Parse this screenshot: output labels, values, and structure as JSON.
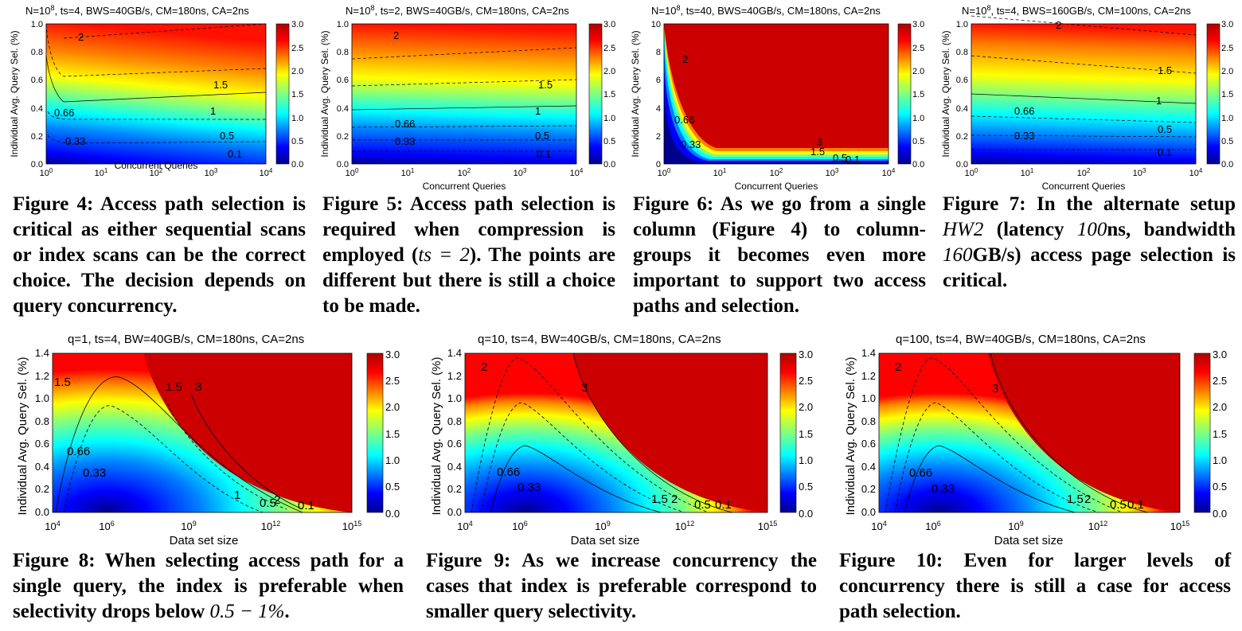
{
  "colors": {
    "jet": [
      "#00008f",
      "#0000ff",
      "#0080ff",
      "#00ffff",
      "#80ff80",
      "#ffff00",
      "#ff8000",
      "#ff0000",
      "#800000"
    ],
    "sat": "#cc0000"
  },
  "figures_top": [
    {
      "id": "f4",
      "title": "N=10^8, ts=4, BWS=40GB/s, CM=180ns, CA=2ns",
      "xlabel": "Concurrent Queries",
      "ylabel": "Individual Avg. Query Sel. (%)",
      "xticks": [
        "10^0",
        "10^1",
        "10^2",
        "10^3",
        "10^4"
      ],
      "yticks": [
        "0.0",
        "0.2",
        "0.4",
        "0.6",
        "0.8",
        "1.0"
      ],
      "cticks": [
        "0.0",
        "0.5",
        "1.0",
        "1.5",
        "2.0",
        "2.5",
        "3.0"
      ],
      "contour_labels": [
        "2",
        "1.5",
        "1",
        "0.66",
        "0.5",
        "0.33",
        "0.1"
      ],
      "caption_label": "Figure 4:",
      "caption": "Access path selection is critical as either sequential scans or index scans can be the correct choice. The decision depends on query concurrency."
    },
    {
      "id": "f5",
      "title": "N=10^8, ts=2, BWS=40GB/s, CM=180ns, CA=2ns",
      "xlabel": "Concurrent Queries",
      "ylabel": "Individual Avg. Query Sel. (%)",
      "xticks": [
        "10^0",
        "10^1",
        "10^2",
        "10^3",
        "10^4"
      ],
      "yticks": [
        "0.0",
        "0.2",
        "0.4",
        "0.6",
        "0.8",
        "1.0"
      ],
      "cticks": [
        "0.0",
        "0.5",
        "1.0",
        "1.5",
        "2.0",
        "2.5",
        "3.0"
      ],
      "contour_labels": [
        "2",
        "1.5",
        "1",
        "0.66",
        "0.5",
        "0.33",
        "0.1"
      ],
      "caption_label": "Figure 5:",
      "caption_pre": "Access path selection is required when compression is employed (",
      "caption_math": "ts = 2",
      "caption_post": "). The points are different but there is still a choice to be made."
    },
    {
      "id": "f6",
      "title": "N=10^8, ts=40, BWS=40GB/s, CM=180ns, CA=2ns",
      "xlabel": "Concurrent Queries",
      "ylabel": "Individual Avg. Query Sel. (%)",
      "xticks": [
        "10^0",
        "10^1",
        "10^2",
        "10^3",
        "10^4"
      ],
      "yticks": [
        "0",
        "2",
        "4",
        "6",
        "8",
        "10"
      ],
      "cticks": [
        "0.0",
        "0.5",
        "1.0",
        "1.5",
        "2.0",
        "2.5",
        "3.0"
      ],
      "contour_labels": [
        "2",
        "0.66",
        "0.33",
        "3",
        "1.5",
        "0.5",
        "0.1"
      ],
      "caption_label": "Figure 6:",
      "caption": "As we go from a single column (Figure 4) to column-groups it becomes even more important to support two access paths and selection."
    },
    {
      "id": "f7",
      "title": "N=10^8, ts=4, BWS=160GB/s, CM=100ns, CA=2ns",
      "xlabel": "Concurrent Queries",
      "ylabel": "Individual Avg. Query Sel. (%)",
      "xticks": [
        "10^0",
        "10^1",
        "10^2",
        "10^3",
        "10^4"
      ],
      "yticks": [
        "0.0",
        "0.2",
        "0.4",
        "0.6",
        "0.8",
        "1.0"
      ],
      "cticks": [
        "0.0",
        "0.5",
        "1.0",
        "1.5",
        "2.0",
        "2.5",
        "3.0"
      ],
      "contour_labels": [
        "2",
        "1.5",
        "1",
        "0.66",
        "0.5",
        "0.33",
        "0.1"
      ],
      "caption_label": "Figure 7:",
      "caption_pre": "In the alternate setup ",
      "caption_math": "HW2",
      "caption_mid": " (latency ",
      "caption_math2": "100",
      "caption_post": "ns, bandwidth ",
      "caption_math3": "160",
      "caption_post2": "GB/s) access page selection is critical."
    }
  ],
  "figures_bottom": [
    {
      "id": "f8",
      "title": "q=1, ts=4, BW=40GB/s, CM=180ns, CA=2ns",
      "xlabel": "Data set size",
      "ylabel": "Individual Avg. Query Sel. (%)",
      "xticks": [
        "10^4",
        "10^6",
        "10^9",
        "10^12",
        "10^15"
      ],
      "yticks": [
        "0.0",
        "0.2",
        "0.4",
        "0.6",
        "0.8",
        "1.0",
        "1.2",
        "1.4"
      ],
      "cticks": [
        "0.0",
        "0.5",
        "1.0",
        "1.5",
        "2.0",
        "2.5",
        "3.0"
      ],
      "contour_labels": [
        "1.5",
        "1.5",
        "3",
        "0.66",
        "0.33",
        "1",
        "0.5",
        "2",
        "0.1"
      ],
      "caption_label": "Figure 8:",
      "caption_pre": "When selecting access path for a single query, the index is preferable when selectivity drops below ",
      "caption_math": "0.5 − 1%",
      "caption_post": "."
    },
    {
      "id": "f9",
      "title": "q=10, ts=4, BW=40GB/s, CM=180ns, CA=2ns",
      "xlabel": "Data set size",
      "ylabel": "Individual Avg. Query Sel. (%)",
      "xticks": [
        "10^4",
        "10^6",
        "10^9",
        "10^12",
        "10^15"
      ],
      "yticks": [
        "0.0",
        "0.2",
        "0.4",
        "0.6",
        "0.8",
        "1.0",
        "1.2",
        "1.4"
      ],
      "cticks": [
        "0.0",
        "0.5",
        "1.0",
        "1.5",
        "2.0",
        "2.5",
        "3.0"
      ],
      "contour_labels": [
        "2",
        "3",
        "0.66",
        "0.33",
        "1.5",
        "2",
        "0.5",
        "0.1"
      ],
      "caption_label": "Figure 9:",
      "caption": "As we increase concurrency the cases that index is preferable correspond to smaller query selectivity."
    },
    {
      "id": "f10",
      "title": "q=100, ts=4, BW=40GB/s, CM=180ns, CA=2ns",
      "xlabel": "Data set size",
      "ylabel": "Individual Avg. Query Sel. (%)",
      "xticks": [
        "10^4",
        "10^6",
        "10^9",
        "10^12",
        "10^15"
      ],
      "yticks": [
        "0.0",
        "0.2",
        "0.4",
        "0.6",
        "0.8",
        "1.0",
        "1.2",
        "1.4"
      ],
      "cticks": [
        "0.0",
        "0.5",
        "1.0",
        "1.5",
        "2.0",
        "2.5",
        "3.0"
      ],
      "contour_labels": [
        "2",
        "3",
        "0.66",
        "0.33",
        "1.5",
        "2",
        "0.5",
        "0.1"
      ],
      "caption_label": "Figure 10:",
      "caption": "Even for larger levels of concurrency there is still a case for access path selection."
    }
  ]
}
